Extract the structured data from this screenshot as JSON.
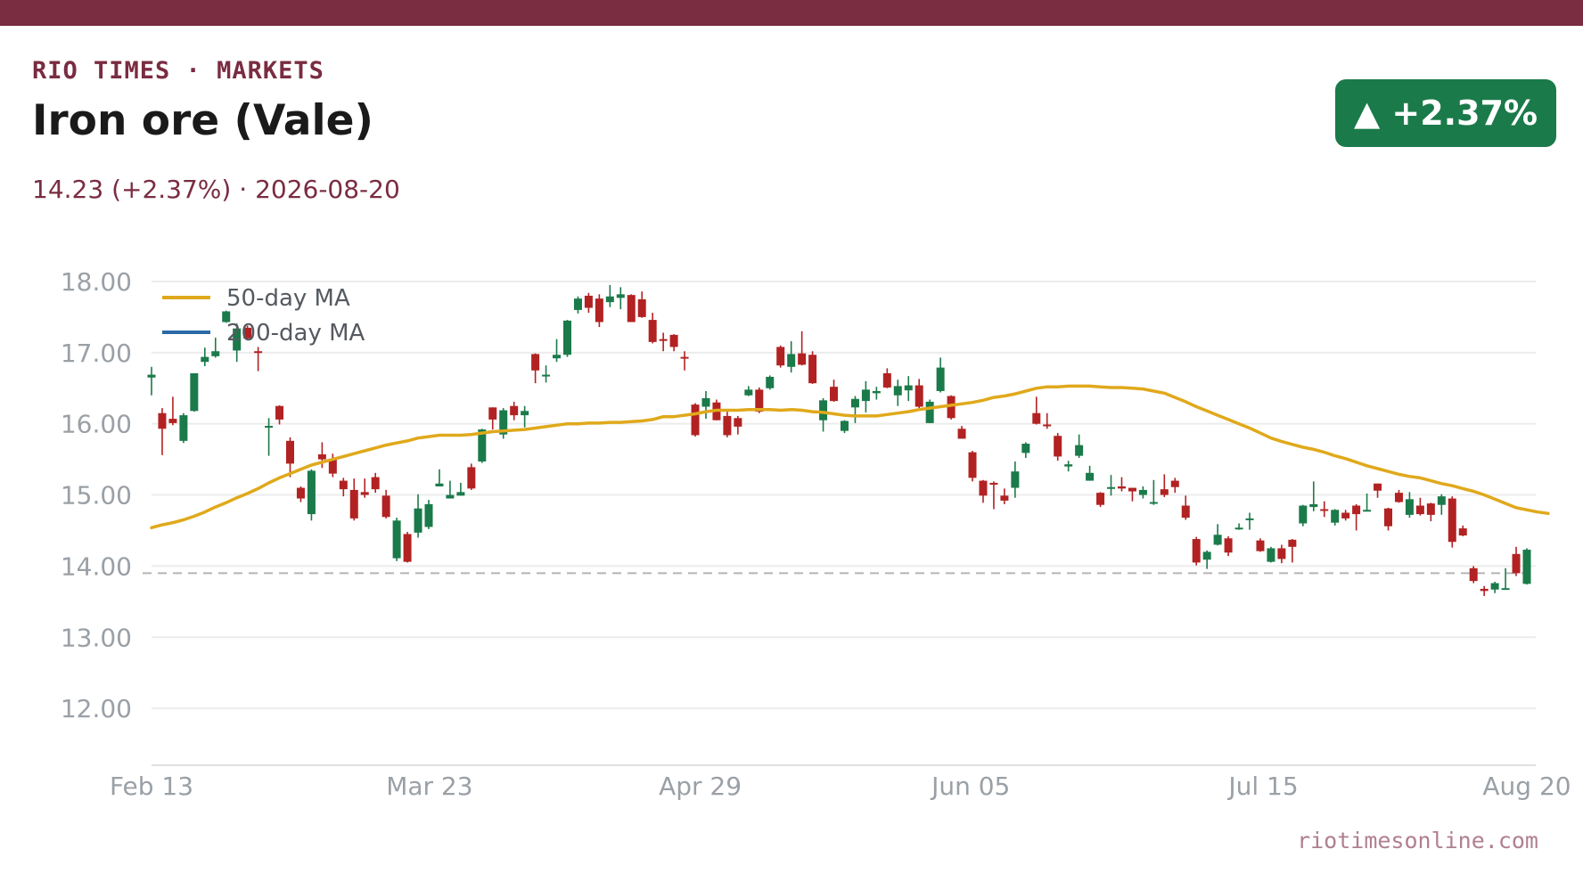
{
  "header": {
    "kicker": "RIO TIMES · MARKETS",
    "title": "Iron ore (Vale)",
    "price": "14.23",
    "change": "(+2.37%)",
    "separator": "·",
    "date": "2026-08-20",
    "badge": "▲ +2.37%",
    "source": "riotimesonline.com"
  },
  "colors": {
    "brand": "#7a2c41",
    "up": "#1b7a4a",
    "down": "#b22222",
    "ma50": "#e0a91b",
    "ma200": "#2b6aa8"
  },
  "chart_data": {
    "type": "candlestick",
    "x_start": "2026-02-13",
    "x_end": "2026-08-20",
    "xticks": [
      {
        "date": "2026-02-13",
        "label": "Feb 13"
      },
      {
        "date": "2026-03-23",
        "label": "Mar 23"
      },
      {
        "date": "2026-04-29",
        "label": "Apr 29"
      },
      {
        "date": "2026-06-05",
        "label": "Jun 05"
      },
      {
        "date": "2026-07-15",
        "label": "Jul 15"
      },
      {
        "date": "2026-08-20",
        "label": "Aug 20"
      }
    ],
    "ylim": [
      11.2,
      18.2
    ],
    "yticks": [
      12,
      13,
      14,
      15,
      16,
      17,
      18
    ],
    "ytick_labels": [
      "12.00",
      "13.00",
      "14.00",
      "15.00",
      "16.00",
      "17.00",
      "18.00"
    ],
    "reference_line": 13.9,
    "legend": {
      "placement": "top-left",
      "entries": [
        "50-day MA",
        "200-day MA"
      ]
    },
    "grid": "horizontal",
    "candles": [
      [
        16.65,
        16.69,
        16.8,
        16.4
      ],
      [
        16.15,
        15.93,
        16.22,
        15.56
      ],
      [
        16.07,
        16.01,
        16.38,
        15.98
      ],
      [
        15.76,
        16.12,
        16.15,
        15.73
      ],
      [
        16.18,
        16.71,
        16.71,
        16.17
      ],
      [
        16.87,
        16.94,
        17.07,
        16.81
      ],
      [
        16.95,
        17.02,
        17.21,
        16.93
      ],
      [
        17.43,
        17.58,
        17.59,
        17.42
      ],
      [
        17.03,
        17.34,
        17.41,
        16.87
      ],
      [
        17.35,
        17.2,
        17.38,
        17.19
      ],
      [
        17.02,
        17.0,
        17.08,
        16.74
      ],
      [
        15.95,
        15.97,
        16.08,
        15.55
      ],
      [
        16.25,
        16.06,
        16.26,
        15.99
      ],
      [
        15.76,
        15.44,
        15.81,
        15.25
      ],
      [
        15.1,
        14.95,
        15.12,
        14.9
      ],
      [
        14.73,
        15.34,
        15.36,
        14.64
      ],
      [
        15.57,
        15.5,
        15.74,
        15.38
      ],
      [
        15.5,
        15.3,
        15.58,
        15.25
      ],
      [
        15.2,
        15.08,
        15.24,
        14.98
      ],
      [
        15.07,
        14.67,
        15.23,
        14.64
      ],
      [
        15.04,
        15.0,
        15.23,
        14.96
      ],
      [
        15.25,
        15.08,
        15.31,
        15.03
      ],
      [
        14.99,
        14.69,
        15.07,
        14.67
      ],
      [
        14.11,
        14.64,
        14.68,
        14.07
      ],
      [
        14.45,
        14.06,
        14.48,
        14.05
      ],
      [
        14.47,
        14.81,
        15.01,
        14.4
      ],
      [
        14.55,
        14.87,
        14.93,
        14.52
      ],
      [
        15.12,
        15.16,
        15.36,
        15.12
      ],
      [
        14.95,
        15.0,
        15.2,
        14.95
      ],
      [
        14.99,
        15.04,
        15.17,
        14.99
      ],
      [
        15.39,
        15.09,
        15.44,
        15.07
      ],
      [
        15.47,
        15.92,
        15.93,
        15.45
      ],
      [
        16.23,
        16.06,
        16.23,
        15.92
      ],
      [
        15.85,
        16.19,
        16.22,
        15.79
      ],
      [
        16.25,
        16.12,
        16.31,
        16.05
      ],
      [
        16.12,
        16.18,
        16.25,
        15.95
      ],
      [
        16.98,
        16.75,
        16.99,
        16.57
      ],
      [
        16.68,
        16.69,
        16.82,
        16.58
      ],
      [
        16.92,
        16.97,
        17.19,
        16.87
      ],
      [
        16.97,
        17.45,
        17.46,
        16.94
      ],
      [
        17.6,
        17.76,
        17.79,
        17.55
      ],
      [
        17.8,
        17.63,
        17.84,
        17.56
      ],
      [
        17.76,
        17.43,
        17.82,
        17.36
      ],
      [
        17.71,
        17.79,
        17.95,
        17.64
      ],
      [
        17.77,
        17.82,
        17.92,
        17.61
      ],
      [
        17.81,
        17.43,
        17.82,
        17.43
      ],
      [
        17.75,
        17.5,
        17.86,
        17.49
      ],
      [
        17.46,
        17.15,
        17.56,
        17.13
      ],
      [
        17.19,
        17.17,
        17.28,
        17.02
      ],
      [
        17.25,
        17.08,
        17.26,
        17.02
      ],
      [
        16.94,
        16.93,
        17.02,
        16.75
      ],
      [
        16.27,
        15.84,
        16.29,
        15.82
      ],
      [
        16.24,
        16.36,
        16.46,
        16.07
      ],
      [
        16.3,
        16.05,
        16.34,
        16.05
      ],
      [
        16.11,
        15.84,
        16.17,
        15.81
      ],
      [
        16.08,
        15.96,
        16.11,
        15.85
      ],
      [
        16.4,
        16.48,
        16.53,
        16.39
      ],
      [
        16.48,
        16.17,
        16.51,
        16.15
      ],
      [
        16.5,
        16.66,
        16.68,
        16.48
      ],
      [
        17.08,
        16.82,
        17.1,
        16.79
      ],
      [
        16.8,
        16.98,
        17.16,
        16.72
      ],
      [
        16.99,
        16.83,
        17.3,
        16.82
      ],
      [
        16.97,
        16.57,
        17.02,
        16.56
      ],
      [
        16.05,
        16.33,
        16.36,
        15.89
      ],
      [
        16.52,
        16.32,
        16.62,
        16.31
      ],
      [
        15.9,
        16.04,
        16.05,
        15.87
      ],
      [
        16.23,
        16.35,
        16.39,
        16.01
      ],
      [
        16.32,
        16.48,
        16.6,
        16.16
      ],
      [
        16.43,
        16.46,
        16.52,
        16.34
      ],
      [
        16.71,
        16.51,
        16.78,
        16.5
      ],
      [
        16.4,
        16.53,
        16.62,
        16.25
      ],
      [
        16.47,
        16.54,
        16.67,
        16.32
      ],
      [
        16.54,
        16.24,
        16.63,
        16.21
      ],
      [
        16.01,
        16.31,
        16.34,
        16.01
      ],
      [
        16.46,
        16.79,
        16.93,
        16.44
      ],
      [
        16.39,
        16.08,
        16.4,
        16.06
      ],
      [
        15.93,
        15.79,
        15.97,
        15.79
      ],
      [
        15.6,
        15.24,
        15.62,
        15.19
      ],
      [
        15.2,
        14.99,
        15.21,
        14.89
      ],
      [
        15.17,
        15.16,
        15.19,
        14.8
      ],
      [
        14.99,
        14.92,
        15.09,
        14.87
      ],
      [
        15.1,
        15.33,
        15.47,
        14.96
      ],
      [
        15.59,
        15.72,
        15.74,
        15.52
      ],
      [
        16.15,
        16.0,
        16.38,
        15.99
      ],
      [
        15.99,
        15.98,
        16.15,
        15.93
      ],
      [
        15.83,
        15.54,
        15.87,
        15.48
      ],
      [
        15.4,
        15.43,
        15.48,
        15.33
      ],
      [
        15.55,
        15.7,
        15.85,
        15.52
      ],
      [
        15.2,
        15.31,
        15.41,
        15.2
      ],
      [
        15.03,
        14.86,
        15.04,
        14.83
      ],
      [
        15.11,
        15.11,
        15.28,
        14.99
      ],
      [
        15.12,
        15.09,
        15.25,
        15.05
      ],
      [
        15.1,
        15.05,
        15.1,
        14.91
      ],
      [
        15.0,
        15.07,
        15.12,
        14.95
      ],
      [
        14.9,
        14.9,
        15.21,
        14.86
      ],
      [
        15.08,
        15.0,
        15.29,
        14.97
      ],
      [
        15.2,
        15.11,
        15.24,
        15.03
      ],
      [
        14.85,
        14.68,
        14.99,
        14.65
      ],
      [
        14.38,
        14.05,
        14.41,
        14.01
      ],
      [
        14.09,
        14.2,
        14.22,
        13.96
      ],
      [
        14.3,
        14.44,
        14.59,
        14.29
      ],
      [
        14.39,
        14.19,
        14.42,
        14.14
      ],
      [
        14.54,
        14.54,
        14.6,
        14.51
      ],
      [
        14.65,
        14.67,
        14.75,
        14.51
      ],
      [
        14.36,
        14.21,
        14.39,
        14.2
      ],
      [
        14.06,
        14.25,
        14.27,
        14.05
      ],
      [
        14.25,
        14.1,
        14.3,
        14.04
      ],
      [
        14.37,
        14.27,
        14.38,
        14.05
      ],
      [
        14.6,
        14.85,
        14.86,
        14.56
      ],
      [
        14.83,
        14.87,
        15.19,
        14.77
      ],
      [
        14.8,
        14.79,
        14.91,
        14.69
      ],
      [
        14.61,
        14.79,
        14.8,
        14.57
      ],
      [
        14.75,
        14.67,
        14.79,
        14.64
      ],
      [
        14.85,
        14.73,
        14.87,
        14.5
      ],
      [
        14.78,
        14.79,
        15.02,
        14.77
      ],
      [
        15.16,
        15.06,
        15.16,
        14.96
      ],
      [
        14.81,
        14.56,
        14.82,
        14.5
      ],
      [
        15.03,
        14.9,
        15.07,
        14.89
      ],
      [
        14.72,
        14.94,
        15.04,
        14.68
      ],
      [
        14.85,
        14.73,
        14.96,
        14.71
      ],
      [
        14.88,
        14.72,
        14.89,
        14.63
      ],
      [
        14.86,
        14.98,
        15.01,
        14.72
      ],
      [
        14.95,
        14.34,
        14.98,
        14.26
      ],
      [
        14.53,
        14.43,
        14.57,
        14.42
      ],
      [
        13.97,
        13.79,
        14.0,
        13.76
      ],
      [
        13.68,
        13.65,
        13.72,
        13.58
      ],
      [
        13.67,
        13.76,
        13.78,
        13.62
      ],
      [
        13.68,
        13.69,
        13.97,
        13.67
      ],
      [
        14.17,
        13.9,
        14.27,
        13.86
      ],
      [
        13.75,
        14.23,
        14.25,
        13.74
      ]
    ],
    "ma50": [
      14.54,
      14.58,
      14.61,
      14.65,
      14.7,
      14.76,
      14.83,
      14.89,
      14.96,
      15.02,
      15.09,
      15.17,
      15.24,
      15.3,
      15.36,
      15.42,
      15.46,
      15.5,
      15.54,
      15.58,
      15.62,
      15.66,
      15.7,
      15.73,
      15.76,
      15.8,
      15.82,
      15.84,
      15.84,
      15.84,
      15.85,
      15.87,
      15.89,
      15.9,
      15.91,
      15.92,
      15.94,
      15.96,
      15.98,
      16.0,
      16.0,
      16.01,
      16.01,
      16.02,
      16.02,
      16.03,
      16.04,
      16.06,
      16.1,
      16.1,
      16.12,
      16.14,
      16.17,
      16.19,
      16.19,
      16.19,
      16.2,
      16.2,
      16.2,
      16.19,
      16.2,
      16.19,
      16.17,
      16.16,
      16.14,
      16.12,
      16.11,
      16.11,
      16.11,
      16.13,
      16.15,
      16.17,
      16.2,
      16.22,
      16.24,
      16.26,
      16.28,
      16.3,
      16.33,
      16.37,
      16.39,
      16.42,
      16.46,
      16.5,
      16.52,
      16.52,
      16.53,
      16.53,
      16.53,
      16.52,
      16.51,
      16.51,
      16.5,
      16.49,
      16.46,
      16.43,
      16.37,
      16.31,
      16.24,
      16.18,
      16.12,
      16.06,
      16.0,
      15.94,
      15.87,
      15.8,
      15.75,
      15.71,
      15.67,
      15.64,
      15.6,
      15.55,
      15.51,
      15.46,
      15.41,
      15.37,
      15.33,
      15.29,
      15.26,
      15.24,
      15.2,
      15.16,
      15.13,
      15.09,
      15.05,
      15.0,
      14.94,
      14.88,
      14.82,
      14.79,
      14.76,
      14.74
    ]
  }
}
